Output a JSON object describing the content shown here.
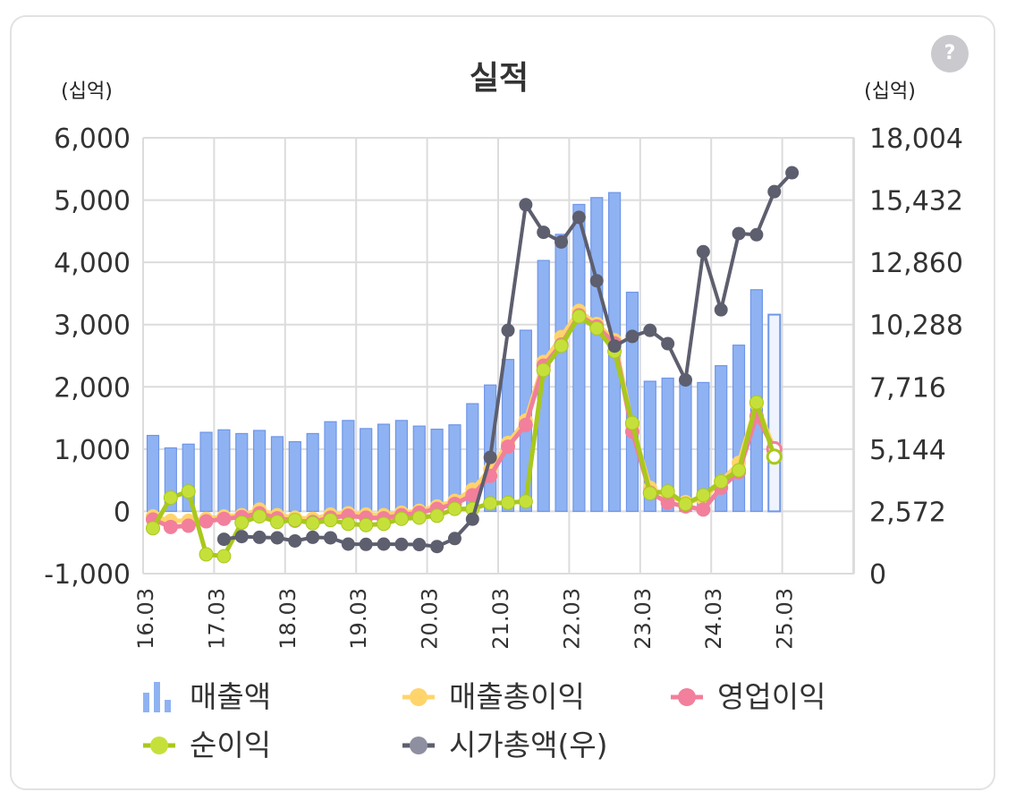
{
  "help_label": "?",
  "chart_data": {
    "type": "bar+line",
    "title": "실적",
    "y_left_unit": "(십억)",
    "y_right_unit": "(십억)",
    "y_left_range": [
      -1000,
      6000
    ],
    "y_left_ticks": [
      "6,000",
      "5,000",
      "4,000",
      "3,000",
      "2,000",
      "1,000",
      "0",
      "-1,000"
    ],
    "y_right_range": [
      0,
      18004
    ],
    "y_right_ticks": [
      "18,004",
      "15,432",
      "12,860",
      "10,288",
      "7,716",
      "5,144",
      "2,572",
      "0"
    ],
    "x_ticks": [
      "16.03",
      "17.03",
      "18.03",
      "19.03",
      "20.03",
      "21.03",
      "22.03",
      "23.03",
      "24.03",
      "25.03"
    ],
    "grid": true,
    "legend_position": "bottom",
    "legend": [
      "매출액",
      "매출총이익",
      "영업이익",
      "순이익",
      "시가총액(우)"
    ],
    "colors": {
      "revenue": "#8fb2f2",
      "revenue_stroke": "#6f96e8",
      "gross_profit": "#ffd46b",
      "operating_profit": "#f27f9b",
      "net_profit": "#c6e03b",
      "net_profit_stroke": "#a9c81c",
      "market_cap": "#5d5e6e"
    },
    "quarters": [
      "16.03",
      "16.06",
      "16.09",
      "16.12",
      "17.03",
      "17.06",
      "17.09",
      "17.12",
      "18.03",
      "18.06",
      "18.09",
      "18.12",
      "19.03",
      "19.06",
      "19.09",
      "19.12",
      "20.03",
      "20.06",
      "20.09",
      "20.12",
      "21.03",
      "21.06",
      "21.09",
      "21.12",
      "22.03",
      "22.06",
      "22.09",
      "22.12",
      "23.03",
      "23.06",
      "23.09",
      "23.12",
      "24.03",
      "24.06",
      "24.09",
      "24.12"
    ],
    "series": [
      {
        "name": "매출액",
        "type": "bar",
        "axis": "left",
        "last_is_estimate": true,
        "values": [
          1220,
          1020,
          1080,
          1270,
          1310,
          1250,
          1300,
          1200,
          1120,
          1250,
          1440,
          1460,
          1330,
          1400,
          1460,
          1370,
          1320,
          1390,
          1730,
          2030,
          2440,
          2910,
          4030,
          4450,
          4930,
          5040,
          5120,
          3520,
          2090,
          2140,
          2100,
          2070,
          2340,
          2670,
          3560,
          3160
        ]
      },
      {
        "name": "매출총이익",
        "type": "line",
        "axis": "left",
        "last_is_estimate": true,
        "values": [
          -80,
          -150,
          -150,
          -120,
          -80,
          -60,
          30,
          -60,
          -100,
          -120,
          -50,
          -30,
          -50,
          -60,
          -20,
          10,
          80,
          170,
          350,
          680,
          1100,
          1460,
          2400,
          2800,
          3220,
          3010,
          2750,
          1380,
          380,
          250,
          150,
          200,
          480,
          780,
          1730,
          1000
        ]
      },
      {
        "name": "영업이익",
        "type": "line",
        "axis": "left",
        "last_is_estimate": true,
        "values": [
          -130,
          -250,
          -230,
          -160,
          -120,
          -90,
          -30,
          -110,
          -150,
          -170,
          -100,
          -70,
          -100,
          -110,
          -60,
          -20,
          40,
          120,
          260,
          570,
          1040,
          1390,
          2340,
          2680,
          3150,
          2970,
          2700,
          1280,
          300,
          140,
          80,
          30,
          380,
          630,
          1530,
          1000
        ]
      },
      {
        "name": "순이익",
        "type": "line",
        "axis": "left",
        "last_is_estimate": true,
        "values": [
          -270,
          220,
          320,
          -690,
          -720,
          -180,
          -80,
          -170,
          -140,
          -190,
          -140,
          -200,
          -220,
          -200,
          -120,
          -100,
          -70,
          40,
          40,
          130,
          140,
          160,
          2270,
          2660,
          3130,
          2940,
          2570,
          1420,
          290,
          320,
          120,
          260,
          480,
          660,
          1750,
          880
        ]
      },
      {
        "name": "시가총액(우)",
        "type": "line",
        "axis": "right",
        "x_index_start": 4,
        "values": [
          1420,
          1530,
          1500,
          1480,
          1350,
          1500,
          1480,
          1220,
          1210,
          1220,
          1210,
          1200,
          1120,
          1450,
          2250,
          4800,
          10050,
          15240,
          14100,
          13700,
          14720,
          12100,
          9400,
          9800,
          10050,
          9500,
          8000,
          13300,
          10900,
          14050,
          14000,
          15780,
          16560
        ]
      }
    ]
  }
}
